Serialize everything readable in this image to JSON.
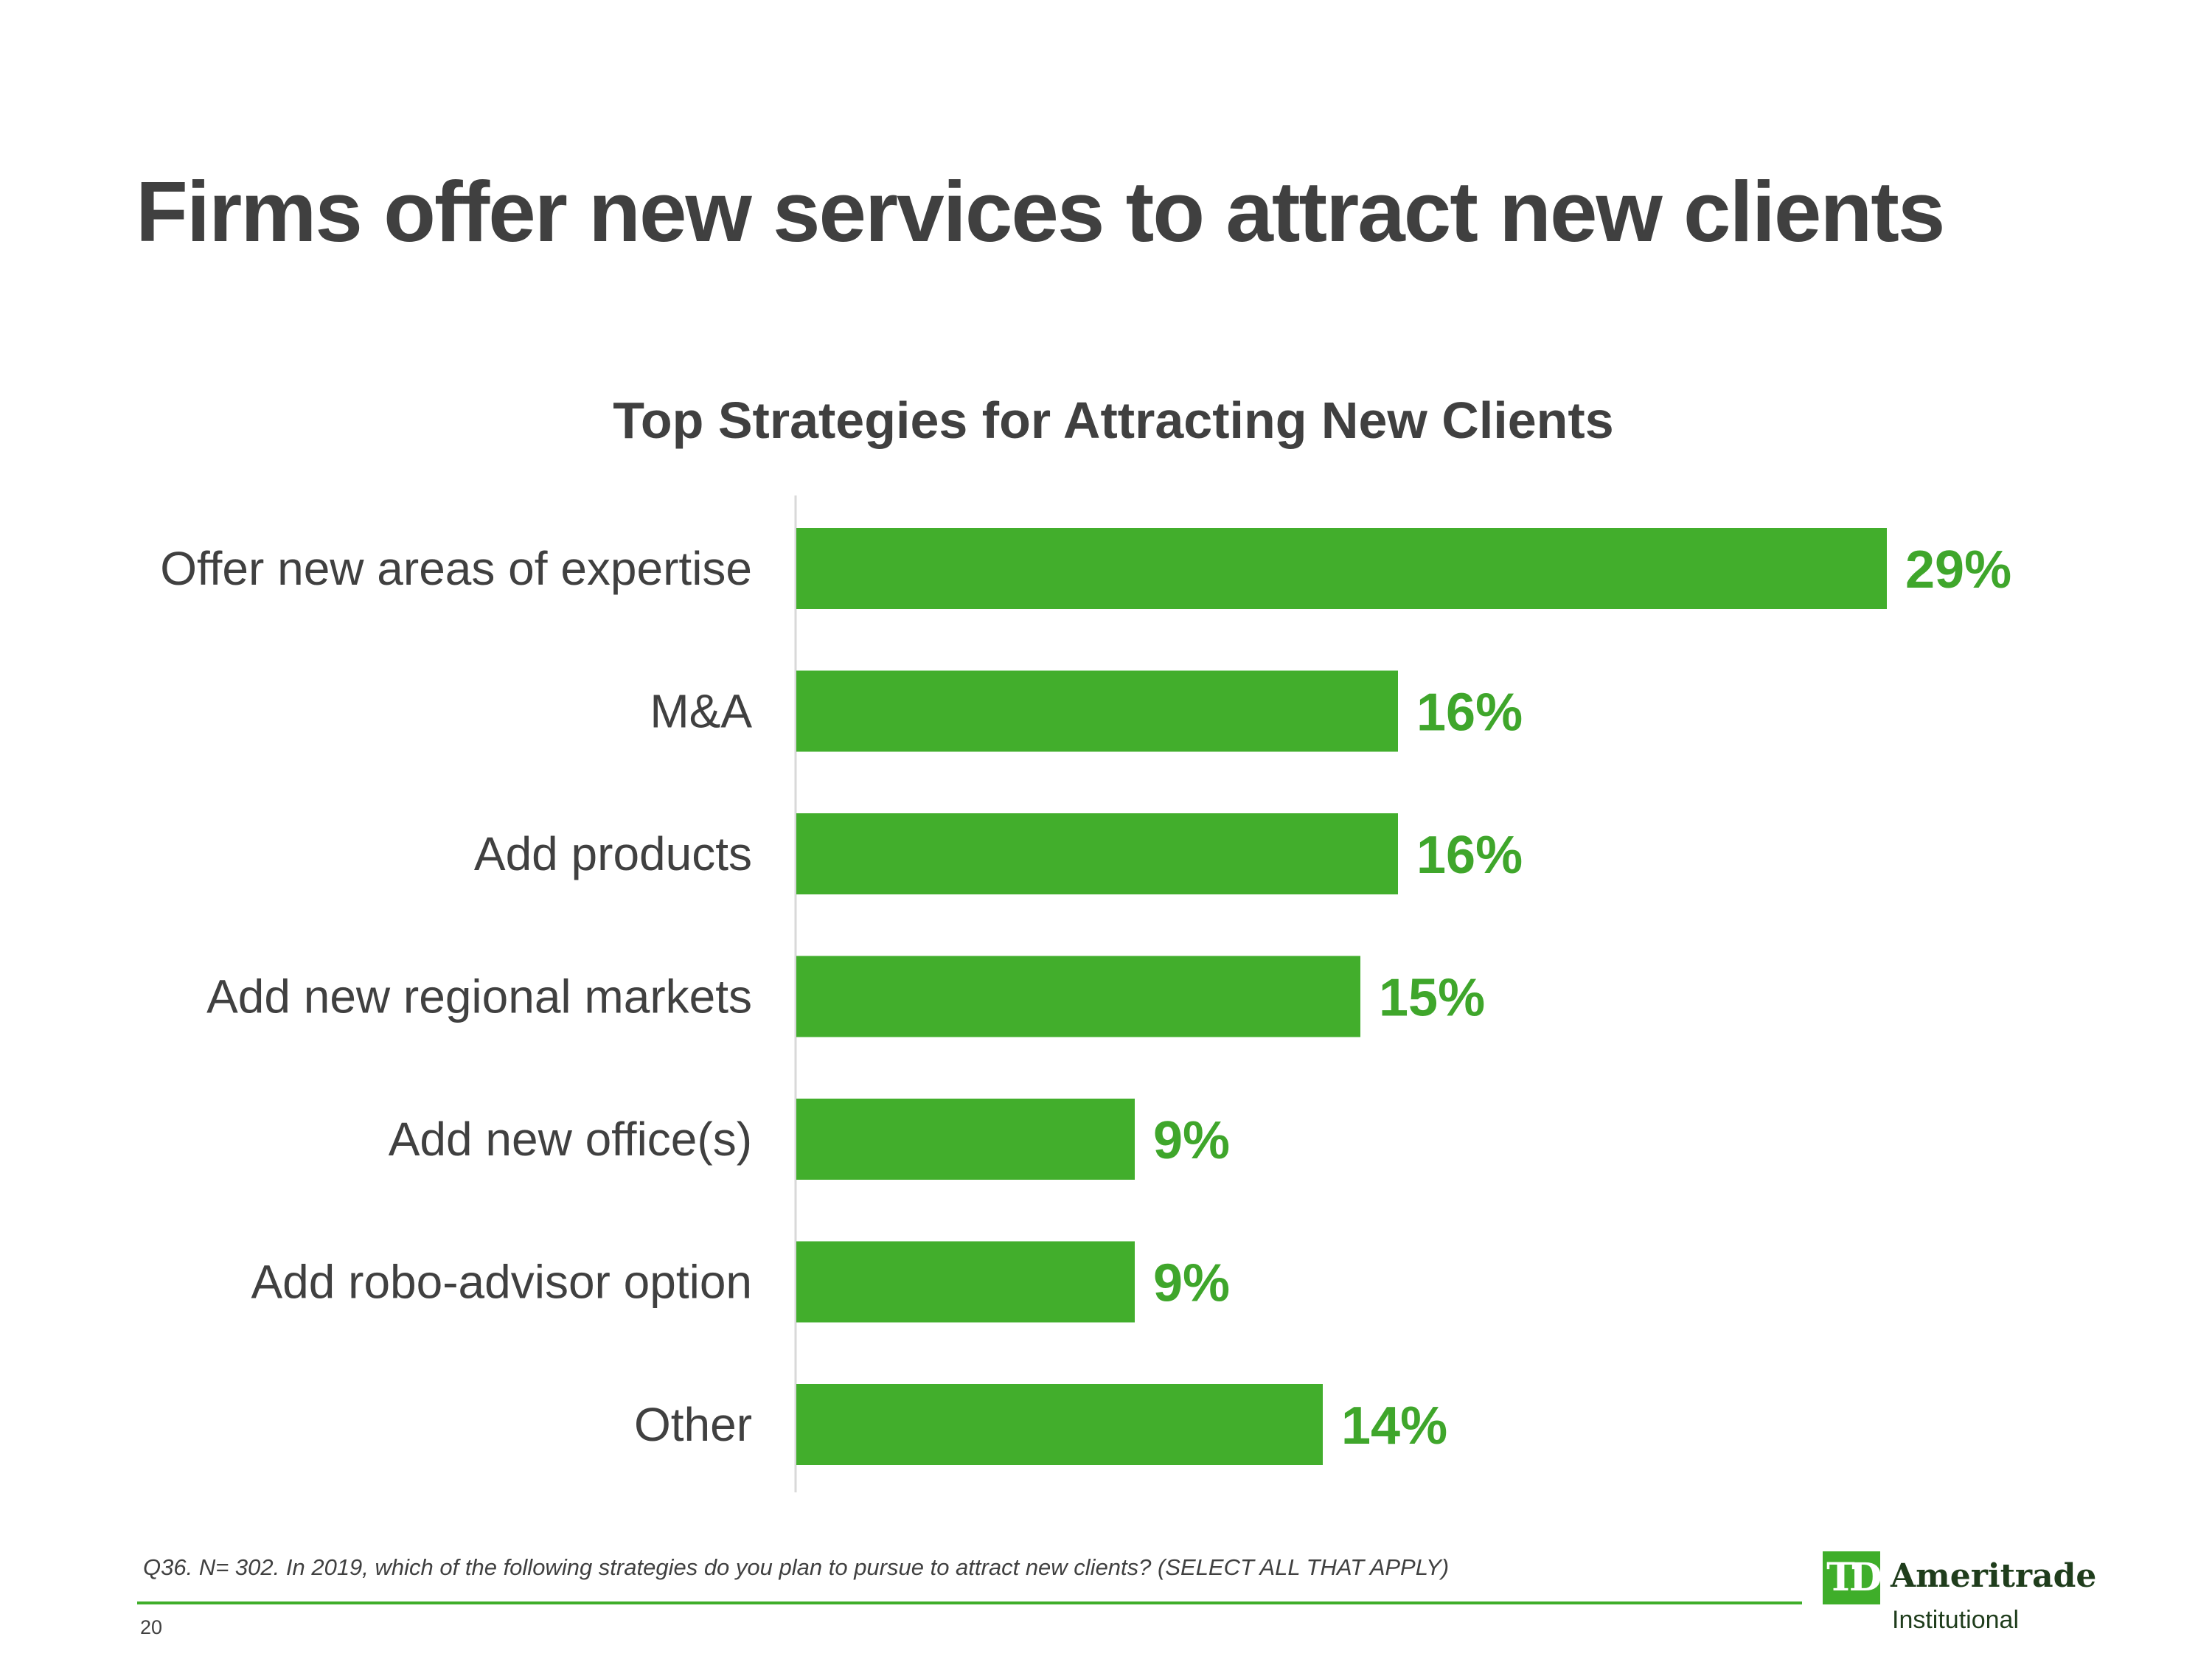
{
  "slide": {
    "title": "Firms offer new services to attract new clients",
    "footnote": "Q36. N= 302.  In 2019, which of the following strategies do you plan to pursue to attract new clients? (SELECT ALL THAT APPLY)",
    "page_number": "20"
  },
  "logo": {
    "mark": "TD",
    "name": "Ameritrade",
    "subtitle": "Institutional"
  },
  "colors": {
    "bar": "#42ae2c",
    "value_label": "#3fa62b",
    "axis": "#d9d9d9"
  },
  "chart_data": {
    "type": "bar",
    "orientation": "horizontal",
    "title": "Top Strategies for Attracting New Clients",
    "xlabel": "",
    "ylabel": "",
    "categories": [
      "Offer new areas of expertise",
      "M&A",
      "Add products",
      "Add new regional markets",
      "Add new office(s)",
      "Add robo-advisor option",
      "Other"
    ],
    "values": [
      29,
      16,
      16,
      15,
      9,
      9,
      14
    ],
    "value_labels": [
      "29%",
      "16%",
      "16%",
      "15%",
      "9%",
      "9%",
      "14%"
    ],
    "unit": "%",
    "xlim": [
      0,
      29
    ],
    "grid": false,
    "legend": "none"
  }
}
